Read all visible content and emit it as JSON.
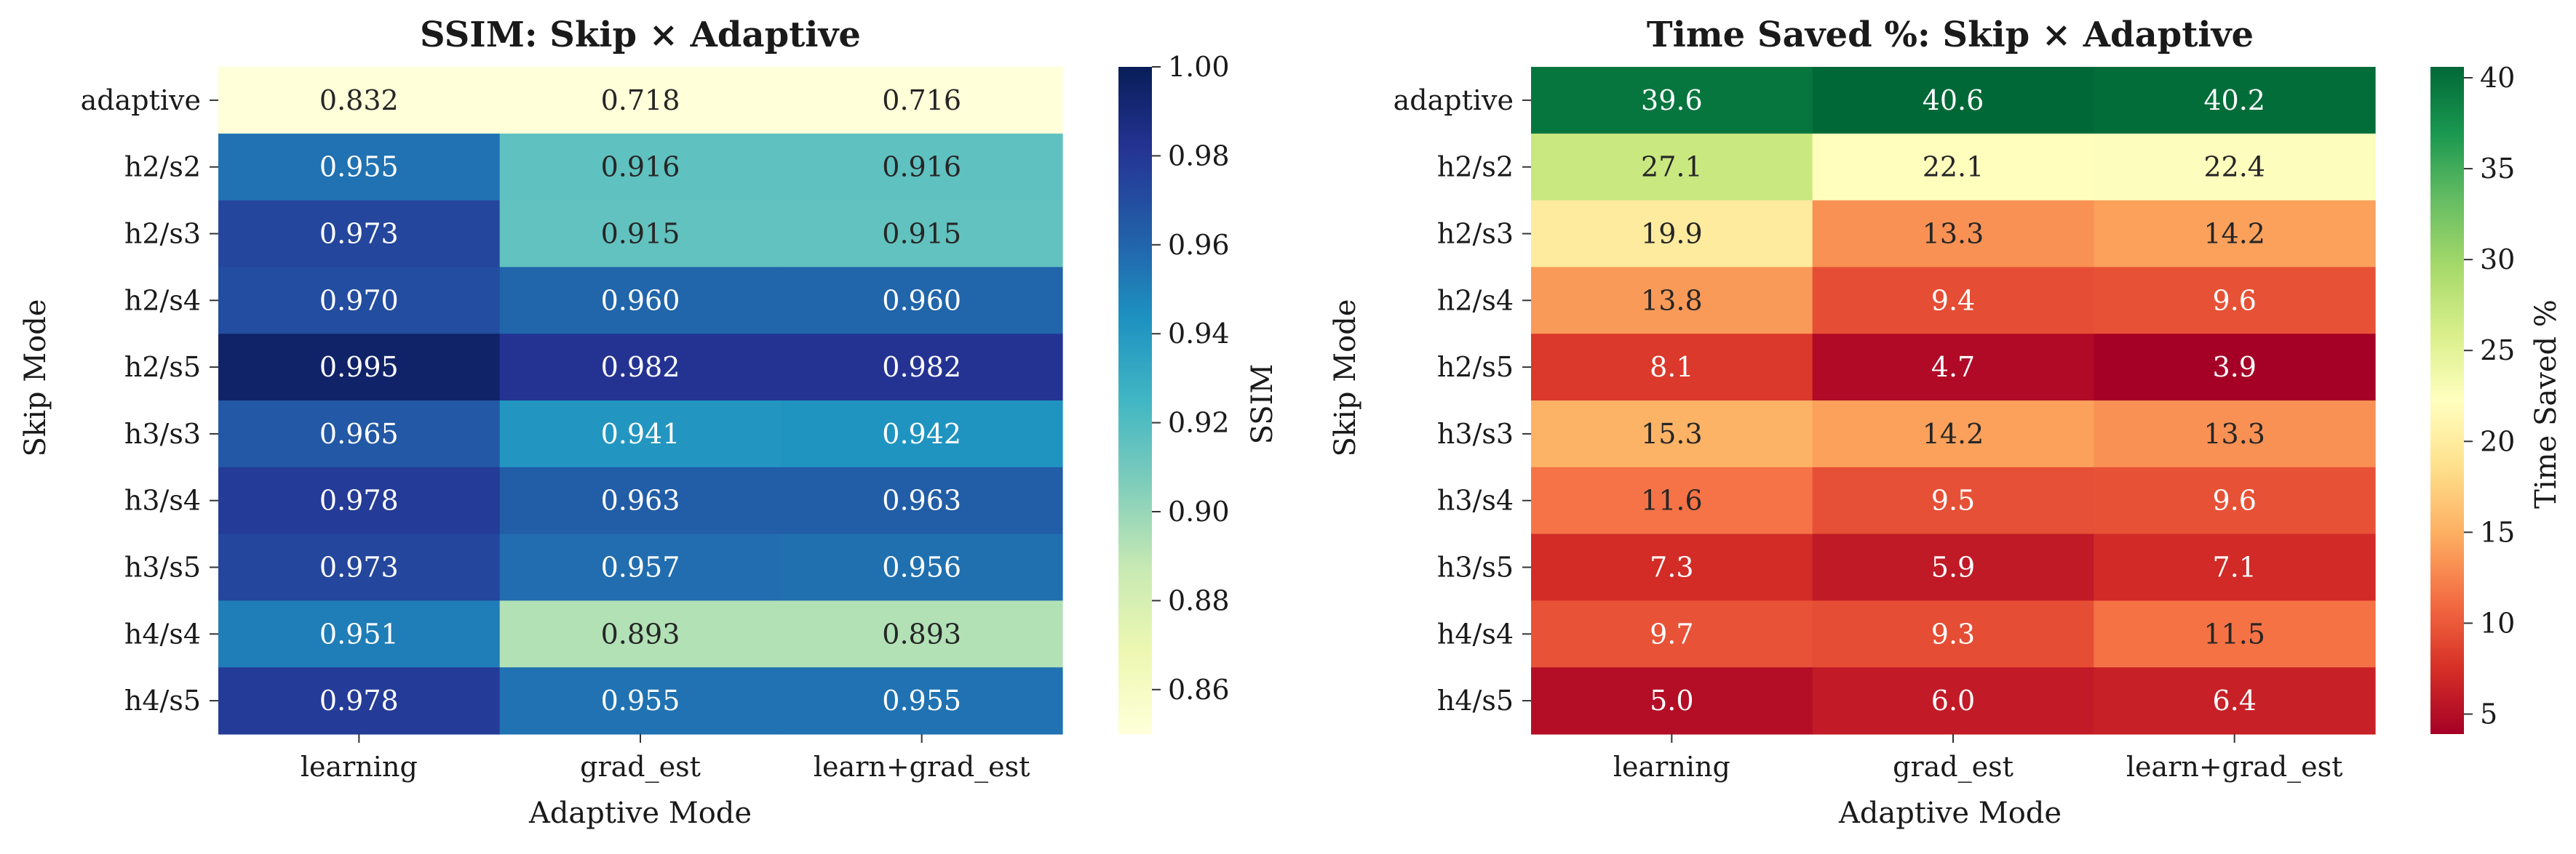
{
  "chart_data": [
    {
      "type": "heatmap",
      "title": "SSIM: Skip × Adaptive",
      "xlabel": "Adaptive Mode",
      "ylabel": "Skip Mode",
      "x_categories": [
        "learning",
        "grad_est",
        "learn+grad_est"
      ],
      "y_categories": [
        "adaptive",
        "h2/s2",
        "h2/s3",
        "h2/s4",
        "h2/s5",
        "h3/s3",
        "h3/s4",
        "h3/s5",
        "h4/s4",
        "h4/s5"
      ],
      "values": [
        [
          0.832,
          0.718,
          0.716
        ],
        [
          0.955,
          0.916,
          0.916
        ],
        [
          0.973,
          0.915,
          0.915
        ],
        [
          0.97,
          0.96,
          0.96
        ],
        [
          0.995,
          0.982,
          0.982
        ],
        [
          0.965,
          0.941,
          0.942
        ],
        [
          0.978,
          0.963,
          0.963
        ],
        [
          0.973,
          0.957,
          0.956
        ],
        [
          0.951,
          0.893,
          0.893
        ],
        [
          0.978,
          0.955,
          0.955
        ]
      ],
      "value_labels": [
        [
          "0.832",
          "0.718",
          "0.716"
        ],
        [
          "0.955",
          "0.916",
          "0.916"
        ],
        [
          "0.973",
          "0.915",
          "0.915"
        ],
        [
          "0.970",
          "0.960",
          "0.960"
        ],
        [
          "0.995",
          "0.982",
          "0.982"
        ],
        [
          "0.965",
          "0.941",
          "0.942"
        ],
        [
          "0.978",
          "0.963",
          "0.963"
        ],
        [
          "0.973",
          "0.957",
          "0.956"
        ],
        [
          "0.951",
          "0.893",
          "0.893"
        ],
        [
          "0.978",
          "0.955",
          "0.955"
        ]
      ],
      "colormap": "YlGnBu",
      "colormap_stops": [
        "#ffffd9",
        "#edf8b1",
        "#c7e9b4",
        "#7fcdbb",
        "#41b6c4",
        "#1d91c0",
        "#225ea8",
        "#253494",
        "#081d58"
      ],
      "color_range": [
        0.85,
        1.0
      ],
      "colorbar_label": "SSIM",
      "colorbar_ticks": [
        0.86,
        0.88,
        0.9,
        0.92,
        0.94,
        0.96,
        0.98,
        1.0
      ],
      "colorbar_tick_labels": [
        "0.86",
        "0.88",
        "0.90",
        "0.92",
        "0.94",
        "0.96",
        "0.98",
        "1.00"
      ],
      "text_color_dark": "#262626",
      "text_color_light": "#ffffff"
    },
    {
      "type": "heatmap",
      "title": "Time Saved %: Skip × Adaptive",
      "xlabel": "Adaptive Mode",
      "ylabel": "Skip Mode",
      "x_categories": [
        "learning",
        "grad_est",
        "learn+grad_est"
      ],
      "y_categories": [
        "adaptive",
        "h2/s2",
        "h2/s3",
        "h2/s4",
        "h2/s5",
        "h3/s3",
        "h3/s4",
        "h3/s5",
        "h4/s4",
        "h4/s5"
      ],
      "values": [
        [
          39.6,
          40.6,
          40.2
        ],
        [
          27.1,
          22.1,
          22.4
        ],
        [
          19.9,
          13.3,
          14.2
        ],
        [
          13.8,
          9.4,
          9.6
        ],
        [
          8.1,
          4.7,
          3.9
        ],
        [
          15.3,
          14.2,
          13.3
        ],
        [
          11.6,
          9.5,
          9.6
        ],
        [
          7.3,
          5.9,
          7.1
        ],
        [
          9.7,
          9.3,
          11.5
        ],
        [
          5.0,
          6.0,
          6.4
        ]
      ],
      "value_labels": [
        [
          "39.6",
          "40.6",
          "40.2"
        ],
        [
          "27.1",
          "22.1",
          "22.4"
        ],
        [
          "19.9",
          "13.3",
          "14.2"
        ],
        [
          "13.8",
          "9.4",
          "9.6"
        ],
        [
          "8.1",
          "4.7",
          "3.9"
        ],
        [
          "15.3",
          "14.2",
          "13.3"
        ],
        [
          "11.6",
          "9.5",
          "9.6"
        ],
        [
          "7.3",
          "5.9",
          "7.1"
        ],
        [
          "9.7",
          "9.3",
          "11.5"
        ],
        [
          "5.0",
          "6.0",
          "6.4"
        ]
      ],
      "colormap": "RdYlGn",
      "colormap_stops": [
        "#a50026",
        "#d73027",
        "#f46d43",
        "#fdae61",
        "#fee08b",
        "#ffffbf",
        "#d9ef8b",
        "#a6d96a",
        "#66bd63",
        "#1a9850",
        "#006837"
      ],
      "color_range": [
        3.9,
        40.6
      ],
      "colorbar_label": "Time Saved %",
      "colorbar_ticks": [
        5,
        10,
        15,
        20,
        25,
        30,
        35,
        40
      ],
      "colorbar_tick_labels": [
        "5",
        "10",
        "15",
        "20",
        "25",
        "30",
        "35",
        "40"
      ],
      "text_color_dark": "#262626",
      "text_color_light": "#ffffff"
    }
  ]
}
